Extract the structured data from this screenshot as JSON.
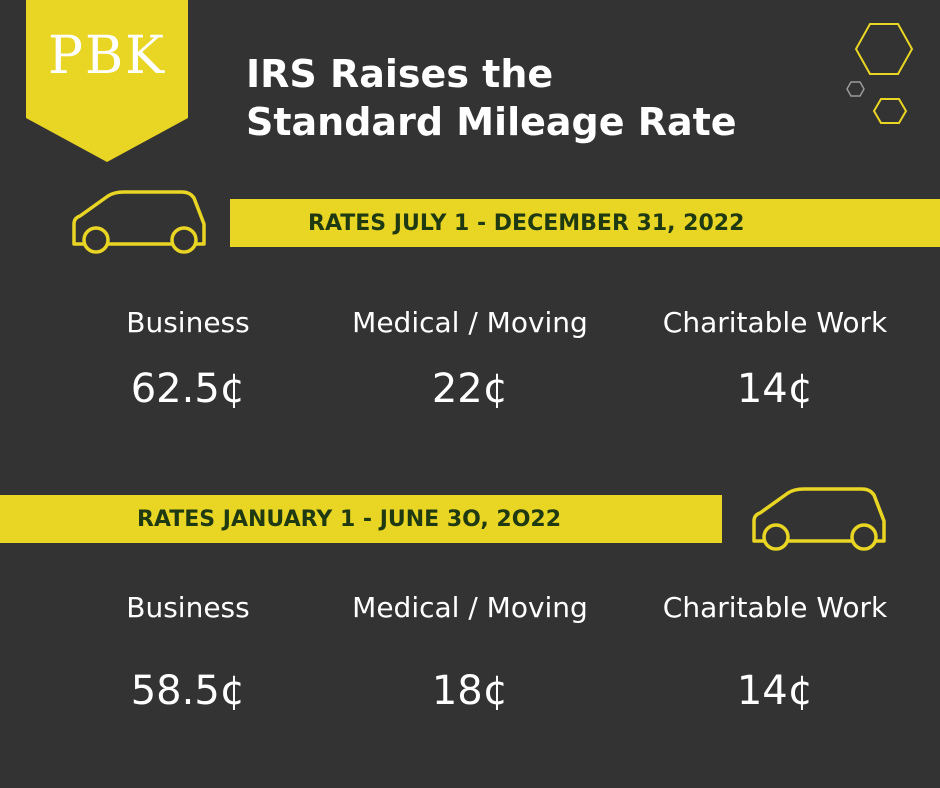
{
  "logo": {
    "text": "PBK"
  },
  "title": {
    "line1": "IRS Raises the",
    "line2": "Standard Mileage Rate"
  },
  "section1": {
    "heading": "RATES JULY 1 - DECEMBER 31, 2022",
    "labels": [
      "Business",
      "Medical / Moving",
      "Charitable Work"
    ],
    "values": [
      "62.5¢",
      "22¢",
      "14¢"
    ]
  },
  "section2": {
    "heading": "RATES JANUARY  1 - JUNE 3O, 2O22",
    "labels": [
      "Business",
      "Medical / Moving",
      "Charitable Work"
    ],
    "values": [
      "58.5¢",
      "18¢",
      "14¢"
    ]
  },
  "icons": {
    "car": "car-icon",
    "hexagons": "hexagon-cluster-icon"
  },
  "colors": {
    "background": "#333333",
    "accent": "#e9d523",
    "band_text": "#1f3a12",
    "text": "#ffffff"
  }
}
